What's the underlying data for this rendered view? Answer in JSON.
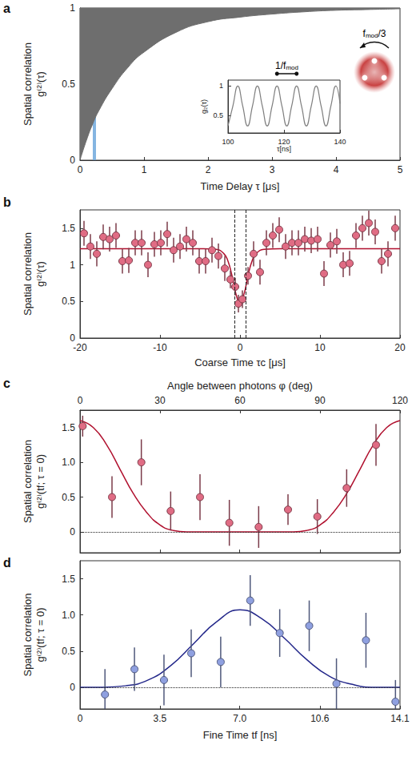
{
  "chart_data": [
    {
      "panel": "a",
      "type": "area",
      "x_label": "Time Delay τ [μs]",
      "y_label": "Spatial correlation g⁽²⁾(τ)",
      "x": [
        0,
        0.1,
        0.2,
        0.3,
        0.5,
        0.75,
        1,
        1.5,
        2,
        2.5,
        3,
        3.5,
        4,
        4.5,
        5
      ],
      "lower": [
        0,
        0.13,
        0.24,
        0.33,
        0.47,
        0.61,
        0.71,
        0.84,
        0.91,
        0.94,
        0.96,
        0.975,
        0.985,
        0.99,
        0.995
      ],
      "upper": 1,
      "color": "#6e6e6e",
      "highlight": {
        "range": [
          0.2,
          0.25
        ],
        "color": "#6fa8dc"
      },
      "xlim": [
        0,
        5
      ],
      "xticks": [
        0,
        1,
        2,
        3,
        4,
        5
      ],
      "ylim": [
        0,
        1
      ],
      "yticks": [
        0,
        0.5,
        1
      ],
      "inset": {
        "type": "line",
        "x_label": "τ[ns]",
        "y_label": "g₂(τ)",
        "x": [
          100,
          101.75,
          103.5,
          105.25,
          107,
          108.75,
          110.5,
          112.25,
          114,
          115.75,
          117.5,
          119.25,
          121,
          122.75,
          124.5,
          126.25,
          128,
          129.75,
          131.5,
          133.25,
          135,
          136.75,
          138.5,
          140
        ],
        "values": [
          0.32,
          0.66,
          1.0,
          0.66,
          0.32,
          0.66,
          1.0,
          0.66,
          0.32,
          0.66,
          1.0,
          0.66,
          0.32,
          0.66,
          1.0,
          0.66,
          0.32,
          0.66,
          1.0,
          0.66,
          0.32,
          0.66,
          1.0,
          0.7
        ],
        "color": "#808080",
        "xlim": [
          100,
          140
        ],
        "xticks": [
          100,
          120,
          140
        ],
        "ylim": [
          0.2,
          1.1
        ],
        "yticks": [
          0.5,
          1
        ],
        "period_marker": [
          117.5,
          124.5
        ],
        "period_label": [
          {
            "text": "1/f"
          },
          {
            "text": "mod",
            "sub": true
          }
        ]
      },
      "rotation_label": [
        {
          "text": "f"
        },
        {
          "text": "mod",
          "sub": true
        },
        {
          "text": "/3"
        }
      ]
    },
    {
      "panel": "b",
      "type": "scatter",
      "marker": "circle",
      "x_label": "Coarse Time τc [μs]",
      "y_label": "Spatial correlation g⁽²⁾(τ)",
      "x": [
        -19.5,
        -18.7,
        -17.9,
        -17.1,
        -16.3,
        -15.5,
        -14.7,
        -13.9,
        -13.1,
        -12.3,
        -11.5,
        -10.7,
        -9.9,
        -9.1,
        -8.3,
        -7.5,
        -6.7,
        -5.9,
        -5.1,
        -4.3,
        -3.5,
        -2.7,
        -1.9,
        -1.2,
        -0.6,
        -0.2,
        0.3,
        1.0,
        1.7,
        2.5,
        3.3,
        4.1,
        4.9,
        5.7,
        6.5,
        7.3,
        8.1,
        8.9,
        9.7,
        10.5,
        11.3,
        12.1,
        12.9,
        13.7,
        14.5,
        15.3,
        16.1,
        16.9,
        17.7,
        18.5,
        19.4
      ],
      "values": [
        1.43,
        1.25,
        1.15,
        1.38,
        1.35,
        1.4,
        1.05,
        1.06,
        1.3,
        1.3,
        1.0,
        1.28,
        1.3,
        1.42,
        1.2,
        1.25,
        1.35,
        1.3,
        1.05,
        1.05,
        1.2,
        1.12,
        0.95,
        0.8,
        0.7,
        0.47,
        0.53,
        0.85,
        1.15,
        0.9,
        1.3,
        1.4,
        1.48,
        1.25,
        1.3,
        1.3,
        1.35,
        1.33,
        1.35,
        0.88,
        1.27,
        1.32,
        1.0,
        1.02,
        1.4,
        1.5,
        1.57,
        1.45,
        1.05,
        1.15,
        1.5
      ],
      "errors": [
        0.17,
        0.17,
        0.17,
        0.17,
        0.17,
        0.17,
        0.17,
        0.17,
        0.17,
        0.17,
        0.17,
        0.17,
        0.17,
        0.17,
        0.17,
        0.17,
        0.17,
        0.17,
        0.17,
        0.17,
        0.17,
        0.17,
        0.17,
        0.12,
        0.12,
        0.12,
        0.12,
        0.12,
        0.17,
        0.17,
        0.17,
        0.17,
        0.17,
        0.17,
        0.17,
        0.17,
        0.17,
        0.17,
        0.17,
        0.17,
        0.17,
        0.17,
        0.17,
        0.17,
        0.17,
        0.17,
        0.17,
        0.17,
        0.17,
        0.17,
        0.17
      ],
      "color": "#e06c84",
      "fit": {
        "type": "line",
        "color": "#b0102e",
        "x": [
          -20,
          -10,
          -5,
          -3,
          -2,
          -1.5,
          -1,
          -0.5,
          0,
          0.5,
          1,
          1.5,
          2,
          3,
          5,
          10,
          20
        ],
        "values": [
          1.22,
          1.22,
          1.22,
          1.21,
          1.15,
          1.05,
          0.85,
          0.6,
          0.47,
          0.6,
          0.85,
          1.05,
          1.15,
          1.21,
          1.22,
          1.22,
          1.22
        ]
      },
      "window": {
        "range": [
          -0.7,
          0.7
        ],
        "line_style": "dashed"
      },
      "xlim": [
        -20,
        20
      ],
      "xticks": [
        -20,
        -10,
        0,
        10,
        20
      ],
      "ylim": [
        0,
        1.75
      ],
      "yticks": [
        0,
        0.5,
        1,
        1.5
      ]
    },
    {
      "panel": "c",
      "type": "scatter",
      "marker": "circle",
      "x_label": "Angle between photons φ (deg)",
      "y_label": "Spatial correlation g⁽²⁾(tf; τ = 0)",
      "x": [
        1,
        12,
        23,
        34,
        45,
        56,
        67,
        78,
        89,
        100,
        111
      ],
      "values": [
        1.52,
        0.5,
        1.0,
        0.3,
        0.5,
        0.13,
        0.07,
        0.32,
        0.22,
        0.63,
        1.25
      ],
      "errors": [
        0.15,
        0.3,
        0.33,
        0.28,
        0.33,
        0.33,
        0.3,
        0.22,
        0.25,
        0.27,
        0.3
      ],
      "color": "#e06c84",
      "fit": {
        "type": "line",
        "color": "#b0102e",
        "x": [
          0,
          5,
          10,
          15,
          20,
          25,
          30,
          35,
          40,
          80,
          85,
          90,
          95,
          100,
          105,
          110,
          115,
          120
        ],
        "values": [
          1.6,
          1.5,
          1.25,
          0.9,
          0.55,
          0.28,
          0.1,
          0.02,
          0,
          0,
          0.02,
          0.1,
          0.28,
          0.55,
          0.9,
          1.25,
          1.5,
          1.6
        ]
      },
      "reference_line": {
        "value": 0,
        "line_style": "dotted"
      },
      "xlim": [
        0,
        120
      ],
      "xticks": [
        0,
        30,
        60,
        90,
        120
      ],
      "ylim": [
        -0.3,
        1.75
      ],
      "yticks": [
        0,
        0.5,
        {
          "value": 1,
          "label": "1.0"
        },
        1.5
      ]
    },
    {
      "panel": "d",
      "type": "scatter",
      "marker": "circle",
      "x_label": "Fine Time tf [ns]",
      "y_label": "Spatial correlation g⁽²⁾(tf; τ = 0)",
      "x": [
        1.1,
        2.4,
        3.7,
        4.9,
        6.2,
        7.5,
        8.8,
        10.1,
        11.3,
        12.6,
        13.9
      ],
      "values": [
        -0.1,
        0.25,
        0.1,
        0.47,
        0.35,
        1.2,
        0.75,
        0.85,
        0.05,
        0.65,
        -0.2
      ],
      "errors": [
        0.35,
        0.3,
        0.35,
        0.33,
        0.35,
        0.35,
        0.33,
        0.35,
        0.35,
        0.38,
        0.3
      ],
      "color": "#8fa0e0",
      "fit": {
        "type": "line",
        "color": "#23278a",
        "x": [
          0,
          1,
          2,
          3,
          4,
          5,
          6,
          7.05,
          8,
          9,
          10,
          11,
          12,
          13,
          14.1
        ],
        "values": [
          0,
          0,
          0.02,
          0.1,
          0.3,
          0.6,
          0.9,
          1.07,
          0.95,
          0.68,
          0.38,
          0.15,
          0.04,
          0,
          0
        ]
      },
      "reference_line": {
        "value": 0,
        "line_style": "dotted"
      },
      "xlim": [
        0,
        14.1
      ],
      "xticks": [
        0,
        {
          "value": 3.52,
          "label": "3.5"
        },
        {
          "value": 7.04,
          "label": "7.0"
        },
        {
          "value": 10.57,
          "label": "10.6"
        },
        14.1
      ],
      "ylim": [
        -0.3,
        1.75
      ],
      "yticks": [
        0,
        0.5,
        {
          "value": 1,
          "label": "1.0"
        },
        1.5
      ]
    }
  ]
}
